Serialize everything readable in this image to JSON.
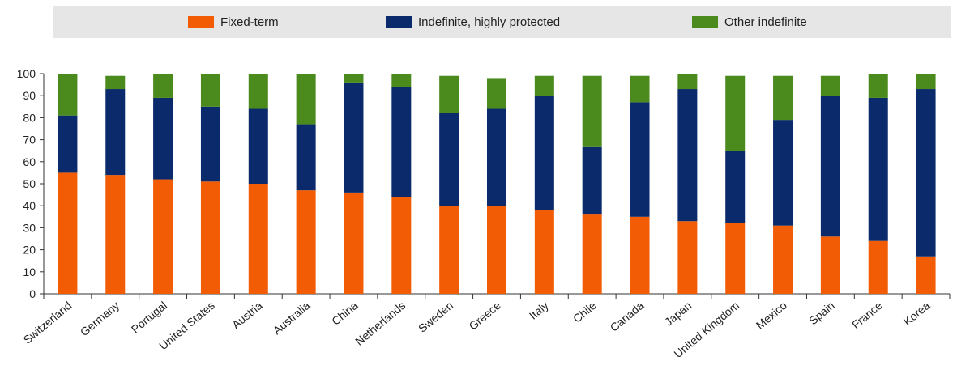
{
  "legend": [
    {
      "name": "Fixed-term",
      "color": "#f25c05"
    },
    {
      "name": "Indefinite, highly protected",
      "color": "#0a2a6b"
    },
    {
      "name": "Other indefinite",
      "color": "#4b8a1d"
    }
  ],
  "chart_data": {
    "type": "bar",
    "stacked": true,
    "categories": [
      "Switzerland",
      "Germany",
      "Portugal",
      "United States",
      "Austria",
      "Australia",
      "China",
      "Netherlands",
      "Sweden",
      "Greece",
      "Italy",
      "Chile",
      "Canada",
      "Japan",
      "United Kingdom",
      "Mexico",
      "Spain",
      "France",
      "Korea"
    ],
    "series": [
      {
        "name": "Fixed-term",
        "values": [
          55,
          54,
          52,
          51,
          50,
          47,
          46,
          44,
          40,
          40,
          38,
          36,
          35,
          33,
          32,
          31,
          26,
          24,
          17
        ]
      },
      {
        "name": "Indefinite, highly protected",
        "values": [
          26,
          39,
          37,
          34,
          34,
          30,
          50,
          50,
          42,
          44,
          52,
          31,
          52,
          60,
          33,
          48,
          64,
          65,
          76
        ]
      },
      {
        "name": "Other indefinite",
        "values": [
          19,
          6,
          11,
          15,
          16,
          23,
          4,
          6,
          17,
          14,
          9,
          32,
          12,
          7,
          34,
          20,
          9,
          11,
          7
        ]
      }
    ],
    "ylim": [
      0,
      100
    ],
    "yticks": [
      0,
      10,
      20,
      30,
      40,
      50,
      60,
      70,
      80,
      90,
      100
    ],
    "grid": false,
    "legend_position": "top"
  }
}
